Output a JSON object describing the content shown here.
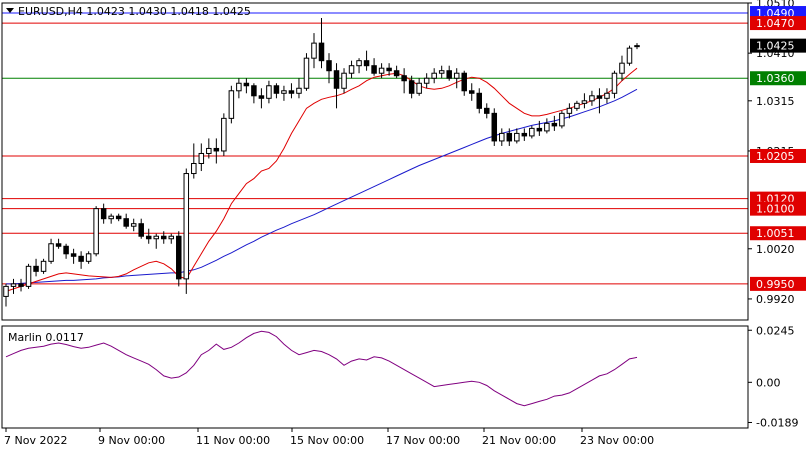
{
  "chart_data": [
    {
      "type": "candlestick",
      "title": "EURUSD,H4  1.0423 1.0430 1.0418 1.0425",
      "symbol": "EURUSD",
      "timeframe": "H4",
      "ohlc_header": "1.0423 1.0430 1.0418 1.0425",
      "ylim": [
        0.9878,
        1.051
      ],
      "y_ticks": [
        "1.0510",
        "1.0410",
        "1.0315",
        "1.0215",
        "1.0020",
        "0.9920"
      ],
      "x_ticks": [
        "7 Nov 2022",
        "9 Nov 00:00",
        "11 Nov 00:00",
        "15 Nov 00:00",
        "17 Nov 00:00",
        "21 Nov 00:00",
        "23 Nov 00:00"
      ],
      "current_price": {
        "label": "1.0425",
        "value": 1.0425
      },
      "levels": [
        {
          "label": "1.0490",
          "value": 1.049,
          "color": "#1a1aff"
        },
        {
          "label": "1.0470",
          "value": 1.047,
          "color": "#e00000"
        },
        {
          "label": "1.0360",
          "value": 1.036,
          "color": "#008000"
        },
        {
          "label": "1.0205",
          "value": 1.0205,
          "color": "#e00000"
        },
        {
          "label": "1.0120",
          "value": 1.012,
          "color": "#e00000"
        },
        {
          "label": "1.0100",
          "value": 1.01,
          "color": "#e00000"
        },
        {
          "label": "1.0051",
          "value": 1.0051,
          "color": "#e00000"
        },
        {
          "label": "0.9950",
          "value": 0.995,
          "color": "#e00000"
        }
      ],
      "candles": [
        [
          0.9925,
          0.995,
          0.9905,
          0.9945
        ],
        [
          0.9945,
          0.996,
          0.993,
          0.995
        ],
        [
          0.995,
          0.996,
          0.9935,
          0.9945
        ],
        [
          0.9945,
          0.999,
          0.994,
          0.9985
        ],
        [
          0.9985,
          1.0,
          0.9965,
          0.9975
        ],
        [
          0.9975,
          1.0,
          0.997,
          0.9995
        ],
        [
          0.9995,
          1.004,
          0.999,
          1.003
        ],
        [
          1.003,
          1.004,
          1.002,
          1.0025
        ],
        [
          1.0025,
          1.003,
          1.0,
          1.001
        ],
        [
          1.001,
          1.002,
          0.999,
          1.0005
        ],
        [
          1.0005,
          1.0015,
          0.998,
          0.9995
        ],
        [
          0.9995,
          1.0015,
          0.999,
          1.001
        ],
        [
          1.001,
          1.0105,
          1.0005,
          1.01
        ],
        [
          1.01,
          1.011,
          1.007,
          1.008
        ],
        [
          1.008,
          1.009,
          1.007,
          1.0085
        ],
        [
          1.0085,
          1.009,
          1.0075,
          1.008
        ],
        [
          1.008,
          1.009,
          1.006,
          1.0065
        ],
        [
          1.0065,
          1.008,
          1.0055,
          1.007
        ],
        [
          1.007,
          1.008,
          1.004,
          1.0045
        ],
        [
          1.0045,
          1.006,
          1.003,
          1.004
        ],
        [
          1.004,
          1.005,
          1.002,
          1.0045
        ],
        [
          1.0045,
          1.0055,
          1.003,
          1.004
        ],
        [
          1.004,
          1.005,
          1.003,
          1.0045
        ],
        [
          1.0045,
          1.0055,
          0.9945,
          0.996
        ],
        [
          0.996,
          1.018,
          0.993,
          1.017
        ],
        [
          1.017,
          1.023,
          1.016,
          1.019
        ],
        [
          1.019,
          1.023,
          1.0175,
          1.021
        ],
        [
          1.021,
          1.024,
          1.02,
          1.022
        ],
        [
          1.022,
          1.024,
          1.019,
          1.0215
        ],
        [
          1.0215,
          1.029,
          1.0205,
          1.028
        ],
        [
          1.028,
          1.0345,
          1.027,
          1.0335
        ],
        [
          1.0335,
          1.036,
          1.032,
          1.035
        ],
        [
          1.035,
          1.036,
          1.033,
          1.0345
        ],
        [
          1.0345,
          1.035,
          1.031,
          1.0325
        ],
        [
          1.0325,
          1.034,
          1.03,
          1.032
        ],
        [
          1.032,
          1.0355,
          1.031,
          1.0345
        ],
        [
          1.0345,
          1.035,
          1.032,
          1.033
        ],
        [
          1.033,
          1.0345,
          1.0315,
          1.0335
        ],
        [
          1.0335,
          1.035,
          1.032,
          1.033
        ],
        [
          1.033,
          1.036,
          1.032,
          1.034
        ],
        [
          1.034,
          1.041,
          1.0335,
          1.04
        ],
        [
          1.04,
          1.045,
          1.038,
          1.043
        ],
        [
          1.043,
          1.048,
          1.038,
          1.0395
        ],
        [
          1.0395,
          1.041,
          1.035,
          1.0375
        ],
        [
          1.0375,
          1.039,
          1.03,
          1.034
        ],
        [
          1.034,
          1.038,
          1.033,
          1.037
        ],
        [
          1.037,
          1.0395,
          1.036,
          1.0385
        ],
        [
          1.0385,
          1.04,
          1.037,
          1.0395
        ],
        [
          1.0395,
          1.0415,
          1.0375,
          1.0385
        ],
        [
          1.0385,
          1.04,
          1.0365,
          1.037
        ],
        [
          1.037,
          1.039,
          1.036,
          1.038
        ],
        [
          1.038,
          1.039,
          1.0365,
          1.0375
        ],
        [
          1.0375,
          1.0385,
          1.036,
          1.0365
        ],
        [
          1.0365,
          1.038,
          1.033,
          1.0355
        ],
        [
          1.0355,
          1.0365,
          1.032,
          1.033
        ],
        [
          1.033,
          1.036,
          1.0325,
          1.035
        ],
        [
          1.035,
          1.037,
          1.034,
          1.036
        ],
        [
          1.036,
          1.038,
          1.035,
          1.037
        ],
        [
          1.037,
          1.0385,
          1.036,
          1.0375
        ],
        [
          1.0375,
          1.0385,
          1.0355,
          1.036
        ],
        [
          1.036,
          1.038,
          1.034,
          1.037
        ],
        [
          1.037,
          1.0375,
          1.0325,
          1.0335
        ],
        [
          1.0335,
          1.035,
          1.0315,
          1.033
        ],
        [
          1.033,
          1.034,
          1.029,
          1.03
        ],
        [
          1.03,
          1.031,
          1.028,
          1.029
        ],
        [
          1.029,
          1.03,
          1.0225,
          1.0235
        ],
        [
          1.0235,
          1.026,
          1.0225,
          1.025
        ],
        [
          1.025,
          1.026,
          1.0225,
          1.0235
        ],
        [
          1.0235,
          1.026,
          1.023,
          1.025
        ],
        [
          1.025,
          1.026,
          1.0235,
          1.0245
        ],
        [
          1.0245,
          1.0265,
          1.024,
          1.026
        ],
        [
          1.026,
          1.0275,
          1.0245,
          1.0255
        ],
        [
          1.0255,
          1.028,
          1.025,
          1.027
        ],
        [
          1.027,
          1.0285,
          1.0255,
          1.0265
        ],
        [
          1.0265,
          1.0295,
          1.026,
          1.029
        ],
        [
          1.029,
          1.031,
          1.028,
          1.03
        ],
        [
          1.03,
          1.0315,
          1.0295,
          1.031
        ],
        [
          1.031,
          1.033,
          1.03,
          1.0315
        ],
        [
          1.0315,
          1.0335,
          1.0305,
          1.0325
        ],
        [
          1.0325,
          1.034,
          1.029,
          1.032
        ],
        [
          1.032,
          1.034,
          1.031,
          1.033
        ],
        [
          1.033,
          1.0375,
          1.032,
          1.037
        ],
        [
          1.037,
          1.0405,
          1.0355,
          1.039
        ],
        [
          1.039,
          1.0425,
          1.0385,
          1.042
        ],
        [
          1.0423,
          1.043,
          1.0418,
          1.0425
        ]
      ],
      "ma_fast": {
        "color": "#e00000",
        "values": [
          0.9935,
          0.994,
          0.9945,
          0.995,
          0.9955,
          0.996,
          0.9965,
          0.997,
          0.9972,
          0.997,
          0.9968,
          0.9966,
          0.9965,
          0.9964,
          0.9963,
          0.9965,
          0.997,
          0.9978,
          0.9985,
          0.9992,
          0.9995,
          0.999,
          0.998,
          0.9965,
          0.996,
          0.9985,
          1.001,
          1.0035,
          1.0055,
          1.008,
          1.011,
          1.013,
          1.015,
          1.016,
          1.0175,
          1.018,
          1.0195,
          1.022,
          1.025,
          1.0275,
          1.03,
          1.031,
          1.0318,
          1.0322,
          1.0325,
          1.033,
          1.0338,
          1.0345,
          1.0355,
          1.0362,
          1.0365,
          1.0368,
          1.037,
          1.0365,
          1.0355,
          1.0345,
          1.034,
          1.0338,
          1.034,
          1.0345,
          1.0352,
          1.0358,
          1.0362,
          1.036,
          1.0352,
          1.034,
          1.0325,
          1.031,
          1.03,
          1.029,
          1.0285,
          1.0285,
          1.0288,
          1.0292,
          1.0296,
          1.03,
          1.0305,
          1.031,
          1.0315,
          1.0322,
          1.033,
          1.034,
          1.0355,
          1.0368,
          1.038
        ]
      },
      "ma_slow": {
        "color": "#1a1acc",
        "values": [
          0.995,
          0.995,
          0.9951,
          0.9952,
          0.9953,
          0.9954,
          0.9955,
          0.9956,
          0.9957,
          0.9957,
          0.9958,
          0.9959,
          0.996,
          0.9962,
          0.9963,
          0.9964,
          0.9966,
          0.9967,
          0.9968,
          0.9969,
          0.997,
          0.9971,
          0.9972,
          0.9972,
          0.9975,
          0.9978,
          0.9983,
          0.999,
          0.9997,
          1.0005,
          1.0012,
          1.002,
          1.0028,
          1.0035,
          1.0043,
          1.005,
          1.0057,
          1.0063,
          1.007,
          1.0076,
          1.0082,
          1.0088,
          1.0095,
          1.0102,
          1.0109,
          1.0116,
          1.0123,
          1.013,
          1.0137,
          1.0144,
          1.0151,
          1.0158,
          1.0165,
          1.0172,
          1.0179,
          1.0186,
          1.0192,
          1.0198,
          1.0204,
          1.021,
          1.0216,
          1.0222,
          1.0228,
          1.0234,
          1.024,
          1.0245,
          1.025,
          1.0254,
          1.0258,
          1.0262,
          1.0266,
          1.0269,
          1.0272,
          1.0275,
          1.0279,
          1.0283,
          1.0288,
          1.0293,
          1.0298,
          1.0303,
          1.0309,
          1.0315,
          1.0322,
          1.033,
          1.0338
        ]
      }
    },
    {
      "type": "line",
      "title": "Marlin 0.0117",
      "indicator": "Marlin",
      "value_label": "0.0117",
      "ylim": [
        -0.0215,
        0.0265
      ],
      "y_ticks": [
        "0.0245",
        "0.00",
        "-0.0189"
      ],
      "series": [
        {
          "name": "Marlin",
          "color": "#800080",
          "values": [
            0.012,
            0.0135,
            0.015,
            0.016,
            0.0165,
            0.017,
            0.018,
            0.0185,
            0.0178,
            0.0168,
            0.016,
            0.0165,
            0.0175,
            0.0185,
            0.017,
            0.015,
            0.013,
            0.0115,
            0.01,
            0.0085,
            0.006,
            0.003,
            0.002,
            0.0025,
            0.0045,
            0.008,
            0.013,
            0.015,
            0.018,
            0.0155,
            0.0165,
            0.0185,
            0.021,
            0.023,
            0.024,
            0.0235,
            0.0215,
            0.018,
            0.015,
            0.013,
            0.014,
            0.015,
            0.0145,
            0.013,
            0.011,
            0.008,
            0.01,
            0.011,
            0.0105,
            0.012,
            0.0115,
            0.01,
            0.008,
            0.006,
            0.004,
            0.002,
            0.0,
            -0.002,
            -0.0015,
            -0.001,
            -0.0005,
            0.0,
            0.0005,
            0.0,
            -0.0015,
            -0.004,
            -0.006,
            -0.008,
            -0.01,
            -0.011,
            -0.01,
            -0.009,
            -0.008,
            -0.0065,
            -0.006,
            -0.005,
            -0.003,
            -0.001,
            0.001,
            0.003,
            0.004,
            0.006,
            0.0085,
            0.011,
            0.0117
          ]
        }
      ]
    }
  ],
  "colors": {
    "background": "#ffffff",
    "grid": "#c8c8c8",
    "bull_body": "#ffffff",
    "bear_body": "#000000",
    "current_price_bg": "#000000"
  }
}
